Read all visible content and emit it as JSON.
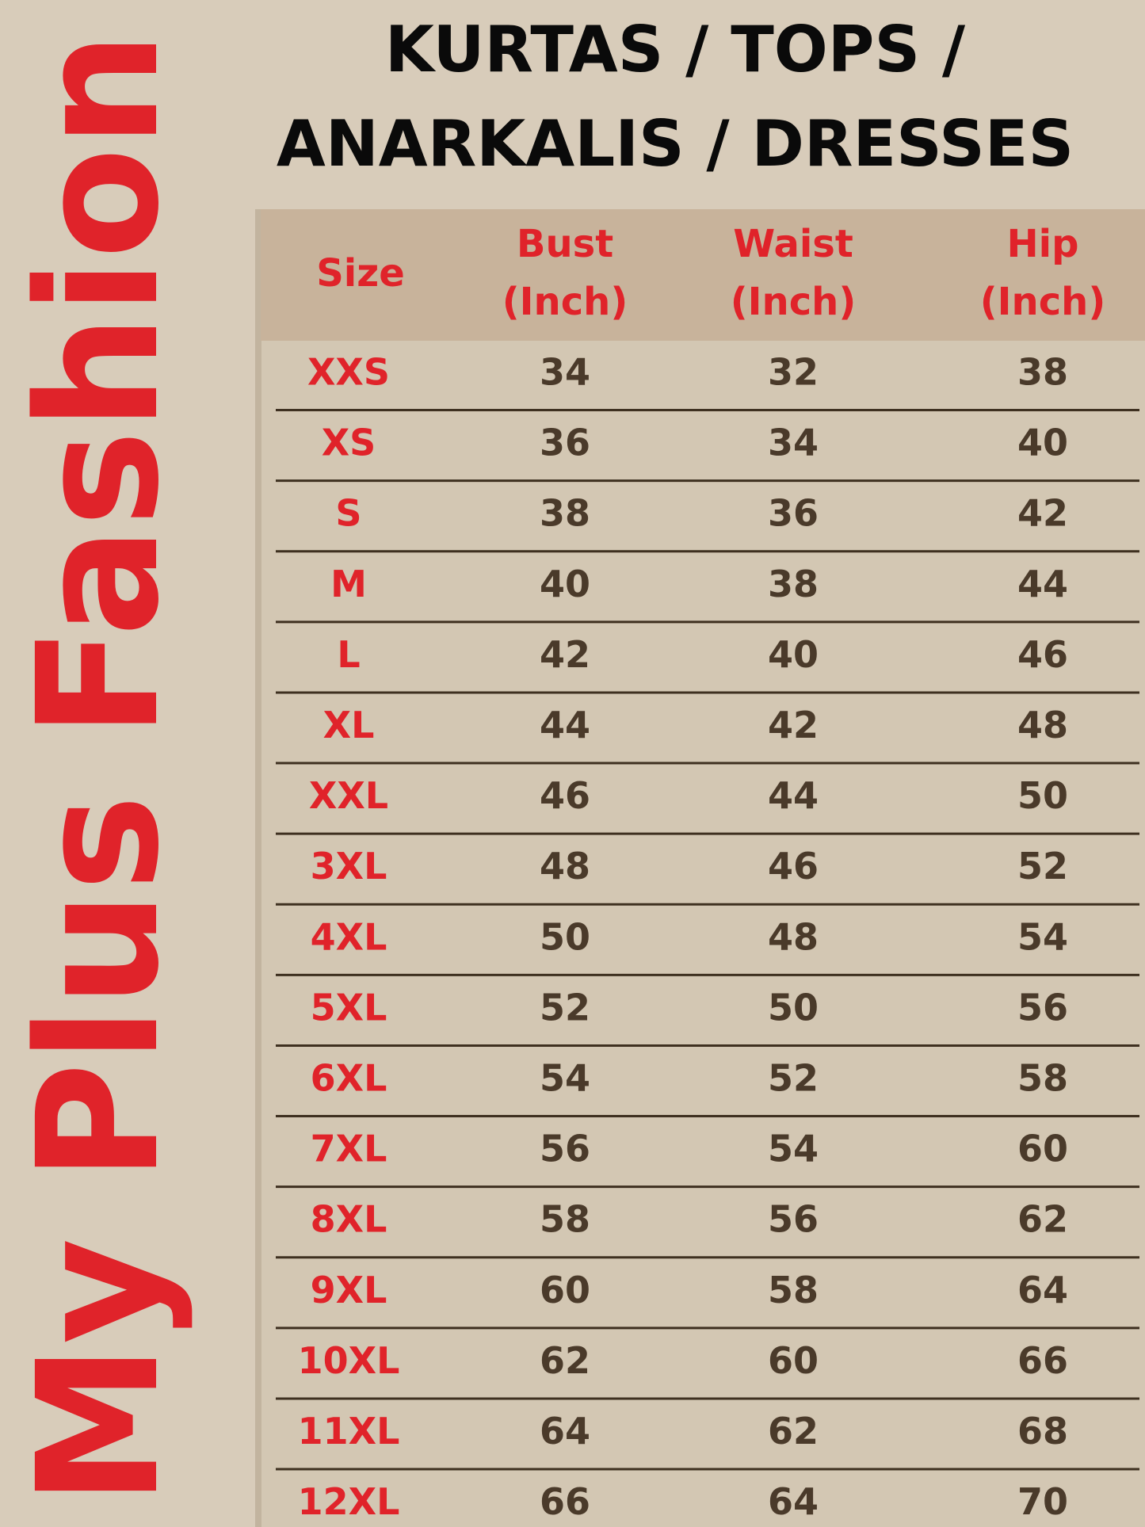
{
  "brand": "My Plus Fashion",
  "title_lines": [
    "KURTAS / TOPS /",
    "ANARKALIS / DRESSES"
  ],
  "table": {
    "header": [
      {
        "name": "Size"
      },
      {
        "name": "Bust",
        "unit": "(Inch)"
      },
      {
        "name": "Waist",
        "unit": "(Inch)"
      },
      {
        "name": "Hip",
        "unit": "(Inch)"
      }
    ],
    "rows": [
      [
        "XXS",
        34,
        32,
        38
      ],
      [
        "XS",
        36,
        34,
        40
      ],
      [
        "S",
        38,
        36,
        42
      ],
      [
        "M",
        40,
        38,
        44
      ],
      [
        "L",
        42,
        40,
        46
      ],
      [
        "XL",
        44,
        42,
        48
      ],
      [
        "XXL",
        46,
        44,
        50
      ],
      [
        "3XL",
        48,
        46,
        52
      ],
      [
        "4XL",
        50,
        48,
        54
      ],
      [
        "5XL",
        52,
        50,
        56
      ],
      [
        "6XL",
        54,
        52,
        58
      ],
      [
        "7XL",
        56,
        54,
        60
      ],
      [
        "8XL",
        58,
        56,
        62
      ],
      [
        "9XL",
        60,
        58,
        64
      ],
      [
        "10XL",
        62,
        60,
        66
      ],
      [
        "11XL",
        64,
        62,
        68
      ],
      [
        "12XL",
        66,
        64,
        70
      ]
    ]
  }
}
